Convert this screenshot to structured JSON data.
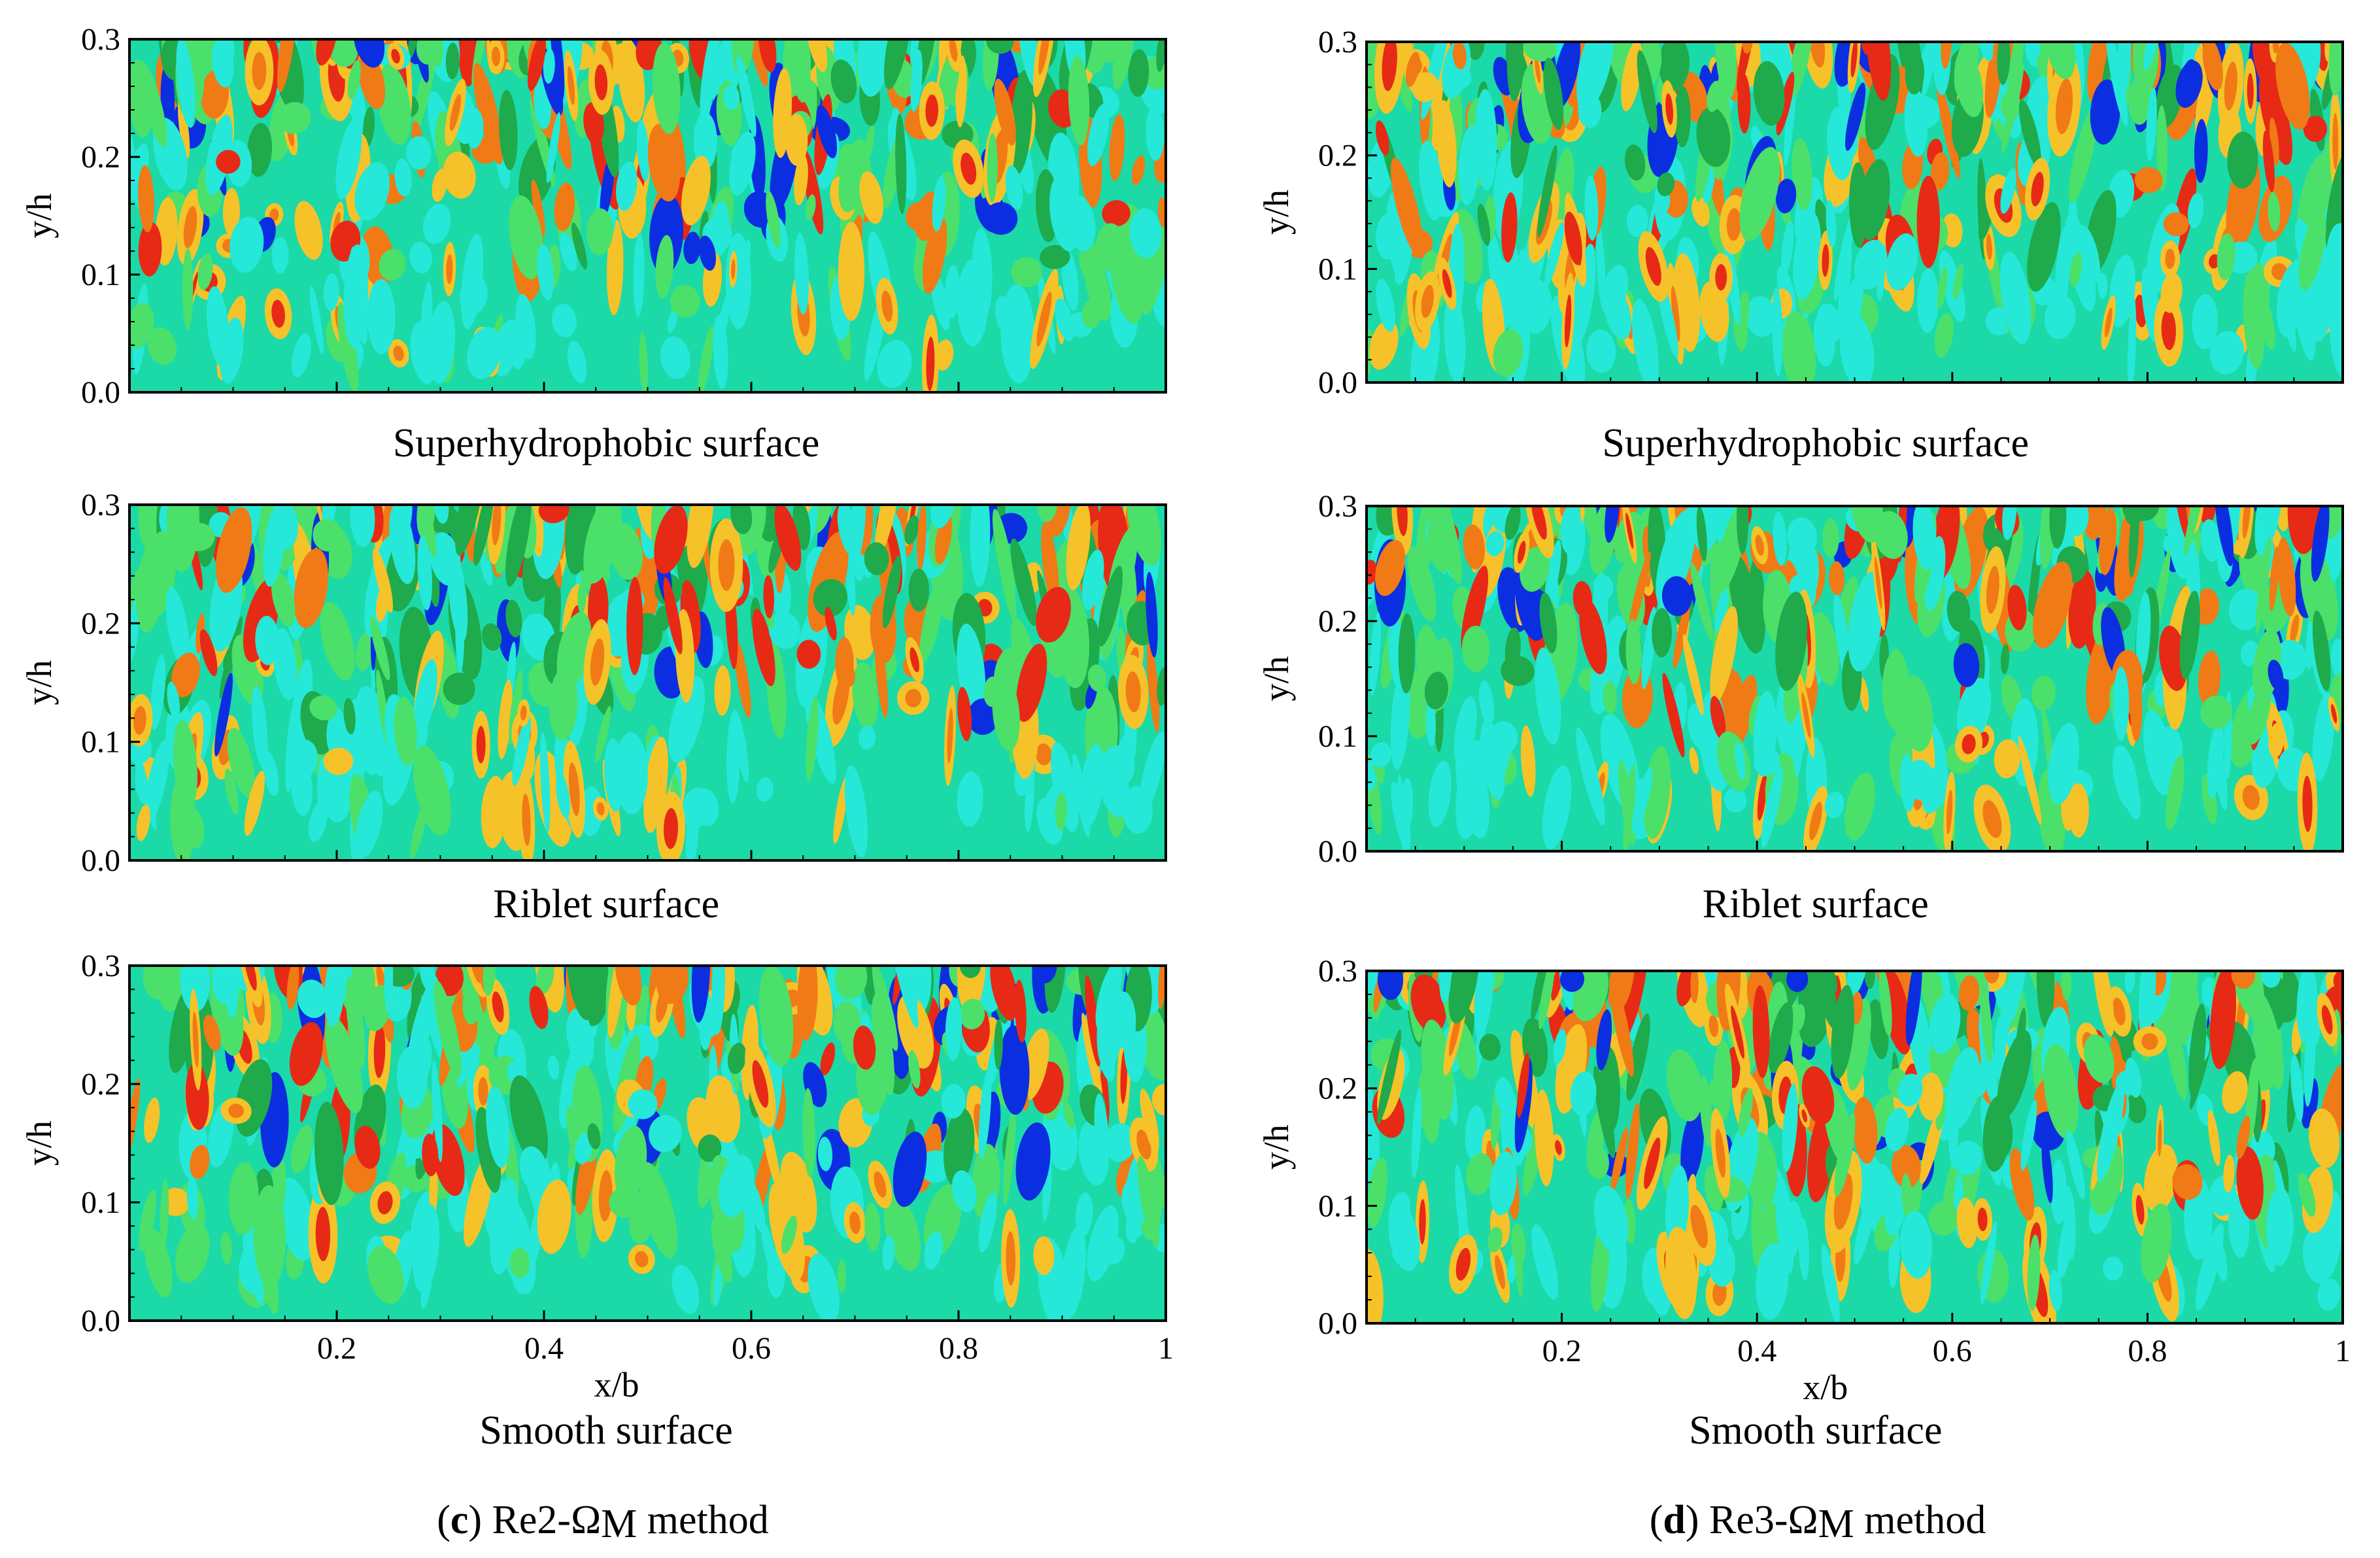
{
  "panels_meta": {
    "colormap": [
      "#1cd9a8",
      "#25e8d8",
      "#4be06a",
      "#1faa4c",
      "#f5c22a",
      "#f07a16",
      "#e62a16",
      "#0a2ee0"
    ]
  },
  "captions": [
    {
      "letter": "c",
      "open": "(",
      "close": ")",
      "rest": " Re2-Ω",
      "sub": "M",
      "tail": " method"
    },
    {
      "letter": "d",
      "open": "(",
      "close": ")",
      "rest": " Re3-Ω",
      "sub": "M",
      "tail": " method"
    }
  ],
  "chart_data": [
    {
      "type": "heatmap",
      "column": "c",
      "title": "Superhydrophobic surface",
      "xlabel": "x/b",
      "ylabel": "y/h",
      "xlim": [
        0,
        1
      ],
      "ylim": [
        0.0,
        0.3
      ],
      "yticks": [
        "0.0",
        "0.1",
        "0.2",
        "0.3"
      ],
      "xticks": [
        "0.2",
        "0.4",
        "0.6",
        "0.8",
        "1"
      ],
      "show_xticklabels": false,
      "show_xlabel": false
    },
    {
      "type": "heatmap",
      "column": "c",
      "title": "Riblet surface",
      "xlabel": "x/b",
      "ylabel": "y/h",
      "xlim": [
        0,
        1
      ],
      "ylim": [
        0.0,
        0.3
      ],
      "yticks": [
        "0.0",
        "0.1",
        "0.2",
        "0.3"
      ],
      "xticks": [
        "0.2",
        "0.4",
        "0.6",
        "0.8",
        "1"
      ],
      "show_xticklabels": false,
      "show_xlabel": false
    },
    {
      "type": "heatmap",
      "column": "c",
      "title": "Smooth surface",
      "xlabel": "x/b",
      "ylabel": "y/h",
      "xlim": [
        0,
        1
      ],
      "ylim": [
        0.0,
        0.3
      ],
      "yticks": [
        "0.0",
        "0.1",
        "0.2",
        "0.3"
      ],
      "xticks": [
        "0.2",
        "0.4",
        "0.6",
        "0.8",
        "1"
      ],
      "show_xticklabels": true,
      "show_xlabel": true
    },
    {
      "type": "heatmap",
      "column": "d",
      "title": "Superhydrophobic surface",
      "xlabel": "x/b",
      "ylabel": "y/h",
      "xlim": [
        0,
        1
      ],
      "ylim": [
        0.0,
        0.3
      ],
      "yticks": [
        "0.0",
        "0.1",
        "0.2",
        "0.3"
      ],
      "xticks": [
        "0.2",
        "0.4",
        "0.6",
        "0.8",
        "1"
      ],
      "show_xticklabels": false,
      "show_xlabel": false
    },
    {
      "type": "heatmap",
      "column": "d",
      "title": "Riblet surface",
      "xlabel": "x/b",
      "ylabel": "y/h",
      "xlim": [
        0,
        1
      ],
      "ylim": [
        0.0,
        0.3
      ],
      "yticks": [
        "0.0",
        "0.1",
        "0.2",
        "0.3"
      ],
      "xticks": [
        "0.2",
        "0.4",
        "0.6",
        "0.8",
        "1"
      ],
      "show_xticklabels": false,
      "show_xlabel": false
    },
    {
      "type": "heatmap",
      "column": "d",
      "title": "Smooth surface",
      "xlabel": "x/b",
      "ylabel": "y/h",
      "xlim": [
        0,
        1
      ],
      "ylim": [
        0.0,
        0.3
      ],
      "yticks": [
        "0.0",
        "0.1",
        "0.2",
        "0.3"
      ],
      "xticks": [
        "0.2",
        "0.4",
        "0.6",
        "0.8",
        "1"
      ],
      "show_xticklabels": true,
      "show_xlabel": true
    }
  ]
}
